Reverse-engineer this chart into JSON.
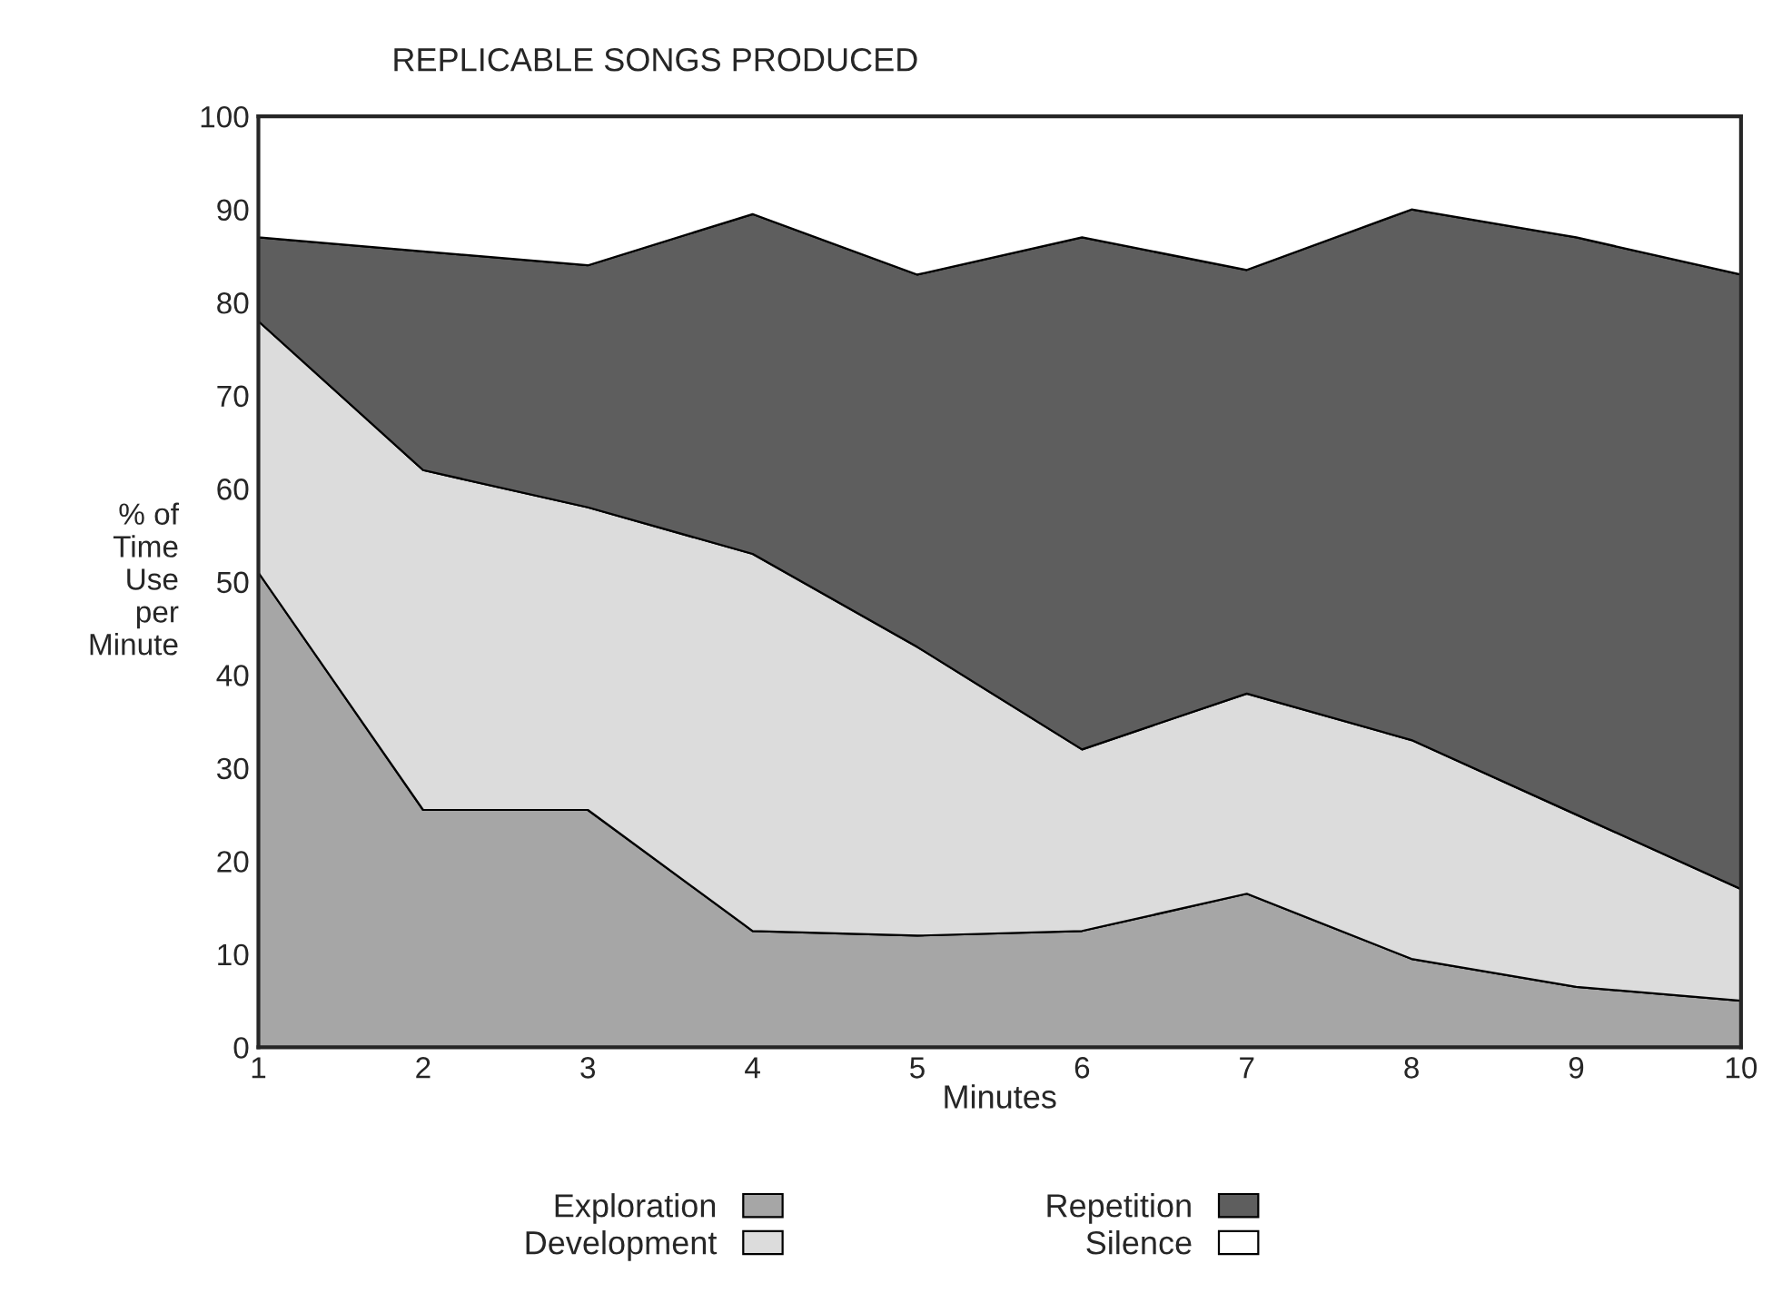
{
  "chart_data": {
    "type": "area",
    "title": "REPLICABLE SONGS PRODUCED",
    "xlabel": "Minutes",
    "ylabel": "% of\nTime\nUse\nper\nMinute",
    "x": [
      1,
      2,
      3,
      4,
      5,
      6,
      7,
      8,
      9,
      10
    ],
    "stacked": true,
    "series": [
      {
        "name": "Exploration",
        "color": "#a6a6a6",
        "values": [
          51,
          25.5,
          25.5,
          12.5,
          12,
          12.5,
          16.5,
          9.5,
          6.5,
          5
        ]
      },
      {
        "name": "Development",
        "color": "#dcdcdc",
        "values": [
          27,
          36.5,
          32.5,
          40.5,
          31,
          19.5,
          21.5,
          23.5,
          18.5,
          12
        ]
      },
      {
        "name": "Repetition",
        "color": "#5e5e5e",
        "values": [
          9,
          23.5,
          26,
          36.5,
          40,
          55,
          45.5,
          57,
          62,
          66
        ]
      },
      {
        "name": "Silence",
        "color": "#ffffff",
        "values": [
          13,
          14.5,
          16,
          10.5,
          17,
          13,
          16.5,
          10,
          13,
          17
        ]
      }
    ],
    "xlim": [
      1,
      10
    ],
    "xticks": [
      1,
      2,
      3,
      4,
      5,
      6,
      7,
      8,
      9,
      10
    ],
    "ylim": [
      0,
      100
    ],
    "yticks": [
      0,
      10,
      20,
      30,
      40,
      50,
      60,
      70,
      80,
      90,
      100
    ],
    "legend": "bottom"
  }
}
